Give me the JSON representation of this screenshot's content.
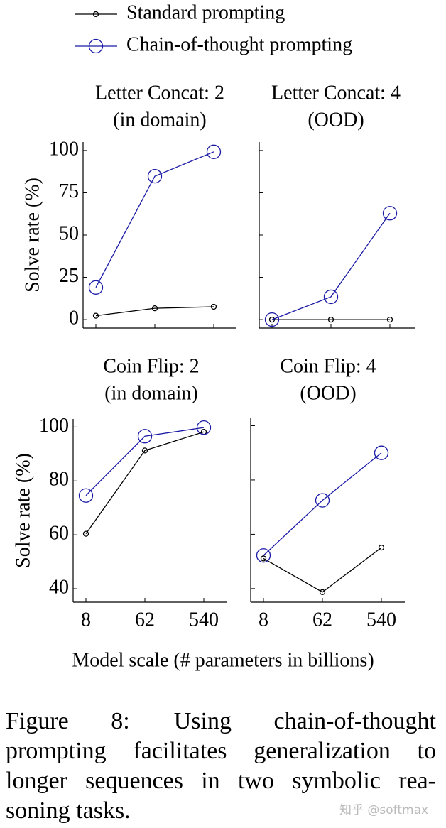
{
  "legend_position": "top",
  "chart_data": [
    {
      "type": "line",
      "title": [
        "Letter Concat: 2",
        "(in domain)"
      ],
      "ylabel": "Solve rate (%)",
      "categories": [
        null,
        null,
        null
      ],
      "series": [
        {
          "name": "Standard prompting",
          "color": "#000000",
          "marker": "circle-small",
          "values": [
            2.3,
            6.7,
            7.6
          ]
        },
        {
          "name": "Chain-of-thought prompting",
          "color": "#1a1aa6",
          "marker": "circle-large",
          "values": [
            19,
            84.8,
            99.2
          ]
        }
      ],
      "ylim": [
        -5,
        105
      ],
      "yticks": [
        0,
        25,
        50,
        75,
        100
      ],
      "show_ytick_labels": true
    },
    {
      "type": "line",
      "title": [
        "Letter Concat: 4",
        "(OOD)"
      ],
      "categories": [
        null,
        null,
        null
      ],
      "series": [
        {
          "name": "Standard prompting",
          "color": "#000000",
          "marker": "circle-small",
          "values": [
            0,
            0,
            0
          ]
        },
        {
          "name": "Chain-of-thought prompting",
          "color": "#1a1aa6",
          "marker": "circle-large",
          "values": [
            0,
            13.5,
            62.9
          ]
        }
      ],
      "ylim": [
        -5,
        105
      ],
      "yticks": [
        0,
        25,
        50,
        75,
        100
      ],
      "show_ytick_labels": false
    },
    {
      "type": "line",
      "title": [
        "Coin Flip: 2",
        "(in domain)"
      ],
      "ylabel": "Solve rate (%)",
      "categories": [
        "8",
        "62",
        "540"
      ],
      "series": [
        {
          "name": "Standard prompting",
          "color": "#000000",
          "marker": "circle-small",
          "values": [
            60.4,
            91.3,
            98.2
          ]
        },
        {
          "name": "Chain-of-thought prompting",
          "color": "#1a1aa6",
          "marker": "circle-large",
          "values": [
            74.6,
            96.6,
            99.8
          ]
        }
      ],
      "ylim": [
        35,
        103
      ],
      "yticks": [
        40,
        60,
        80,
        100
      ],
      "show_ytick_labels": true
    },
    {
      "type": "line",
      "title": [
        "Coin Flip: 4",
        "(OOD)"
      ],
      "categories": [
        "8",
        "62",
        "540"
      ],
      "series": [
        {
          "name": "Standard prompting",
          "color": "#000000",
          "marker": "circle-small",
          "values": [
            51.1,
            38.7,
            55.1
          ]
        },
        {
          "name": "Chain-of-thought prompting",
          "color": "#1a1aa6",
          "marker": "circle-large",
          "values": [
            52.2,
            72.5,
            90
          ]
        }
      ],
      "ylim": [
        35,
        103
      ],
      "yticks": [
        40,
        60,
        80,
        100
      ],
      "show_ytick_labels": false
    }
  ],
  "xlabel": "Model scale (# parameters in billions)",
  "caption": {
    "label": "Figure 8:",
    "text": "Using chain-of-thought prompting facilitates generalization to longer sequences in two symbolic rea-soning tasks."
  },
  "watermark": "知乎 @softmax"
}
